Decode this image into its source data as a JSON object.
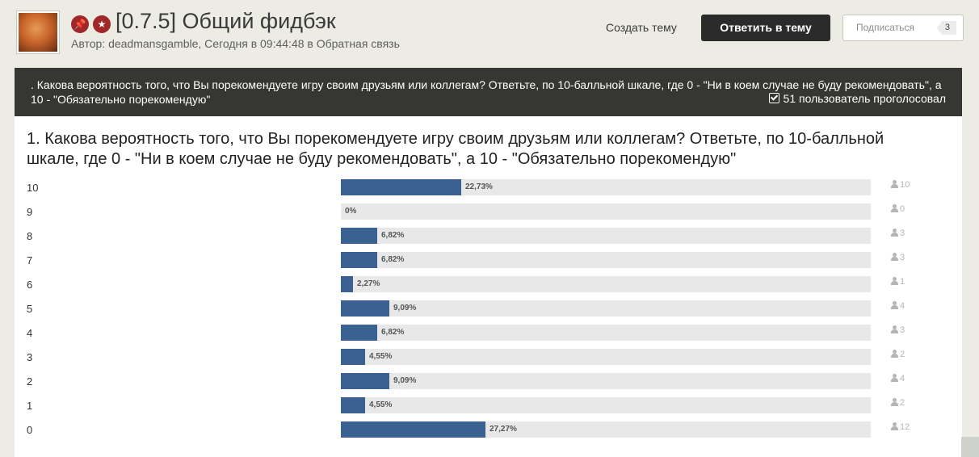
{
  "topic": {
    "badges": [
      {
        "icon": "pin-icon",
        "glyph": "📌"
      },
      {
        "icon": "star-icon",
        "glyph": "★"
      }
    ],
    "title": "[0.7.5] Общий фидбэк",
    "meta": "Автор: deadmansgamble, Сегодня в 09:44:48 в Обратная связь"
  },
  "actions": {
    "create_topic": "Создать тему",
    "reply": "Ответить в тему",
    "subscribe": "Подписаться",
    "subscribe_count": "3"
  },
  "poll": {
    "header_question": ". Какова вероятность того, что Вы порекомендуете игру своим друзьям или коллегам? Ответьте, по 10-балльной шкале, где 0 - \"Ни в коем случае не буду рекомендовать\", а 10 - \"Обязательно порекомендую\"",
    "votes_text": "51 пользователь проголосовал",
    "question": "1. Какова вероятность того, что Вы порекомендуете игру своим друзьям или коллегам? Ответьте, по 10-балльной шкале, где 0 - \"Ни в коем случае не буду рекомендовать\", а 10 - \"Обязательно порекомендую\"",
    "bar_color": "#3b6193",
    "options": [
      {
        "label": "10",
        "percent": 22.73,
        "percent_text": "22,73%",
        "votes": "10"
      },
      {
        "label": "9",
        "percent": 0,
        "percent_text": "0%",
        "votes": "0"
      },
      {
        "label": "8",
        "percent": 6.82,
        "percent_text": "6,82%",
        "votes": "3"
      },
      {
        "label": "7",
        "percent": 6.82,
        "percent_text": "6,82%",
        "votes": "3"
      },
      {
        "label": "6",
        "percent": 2.27,
        "percent_text": "2,27%",
        "votes": "1"
      },
      {
        "label": "5",
        "percent": 9.09,
        "percent_text": "9,09%",
        "votes": "4"
      },
      {
        "label": "4",
        "percent": 6.82,
        "percent_text": "6,82%",
        "votes": "3"
      },
      {
        "label": "3",
        "percent": 4.55,
        "percent_text": "4,55%",
        "votes": "2"
      },
      {
        "label": "2",
        "percent": 9.09,
        "percent_text": "9,09%",
        "votes": "4"
      },
      {
        "label": "1",
        "percent": 4.55,
        "percent_text": "4,55%",
        "votes": "2"
      },
      {
        "label": "0",
        "percent": 27.27,
        "percent_text": "27,27%",
        "votes": "12"
      }
    ]
  }
}
